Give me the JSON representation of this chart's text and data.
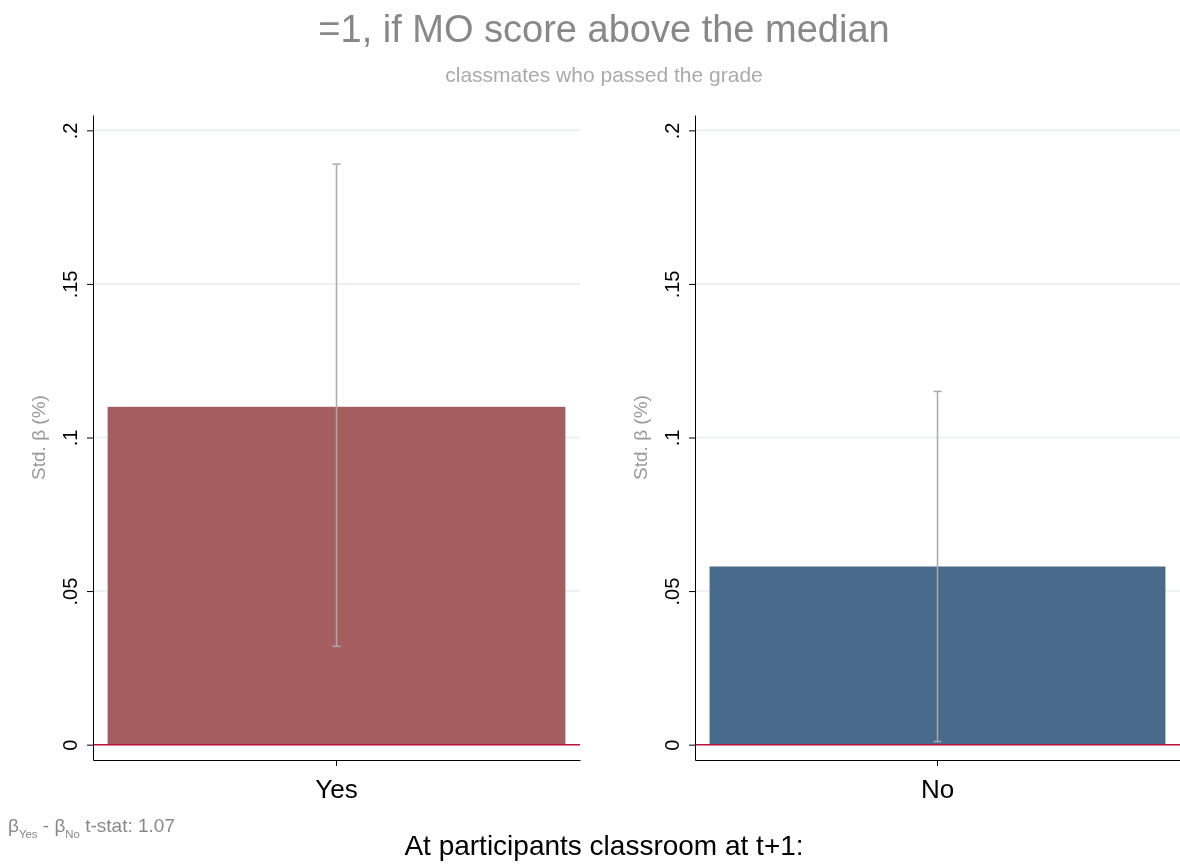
{
  "chart_data": [
    {
      "type": "other",
      "title": "=1, if MO score above the median",
      "subtitle": "classmates who passed the grade",
      "annotations": [
        "At participants classroom at t+1:",
        "β$_{Yes}$ - β$_{No}$  t-stat: 1.07"
      ]
    },
    {
      "type": "bar",
      "ylabel": "Std. β (%)",
      "categories": [
        "Yes"
      ],
      "values": [
        0.11
      ],
      "errors": [
        [
          0.032,
          0.189
        ]
      ],
      "color": "#a45e60",
      "ylim": [
        -0.005,
        0.205
      ],
      "yticks": [
        0,
        {
          "value": 0.05,
          "label": ".05"
        },
        {
          "value": 0.1,
          "label": ".1"
        },
        {
          "value": 0.15,
          "label": ".15"
        },
        {
          "value": 0.2,
          "label": ".2"
        }
      ],
      "grid": "y",
      "ref_lines": [
        {
          "axis": "y",
          "value": 0,
          "color": "#c0143c"
        }
      ]
    },
    {
      "type": "bar",
      "ylabel": "Std. β (%)",
      "categories": [
        "No"
      ],
      "values": [
        0.058
      ],
      "errors": [
        [
          0.001,
          0.115
        ]
      ],
      "color": "#486a8b",
      "ylim": [
        -0.005,
        0.205
      ],
      "yticks": [
        0,
        {
          "value": 0.05,
          "label": ".05"
        },
        {
          "value": 0.1,
          "label": ".1"
        },
        {
          "value": 0.15,
          "label": ".15"
        },
        {
          "value": 0.2,
          "label": ".2"
        }
      ],
      "grid": "y",
      "ref_lines": [
        {
          "axis": "y",
          "value": 0,
          "color": "#c0143c"
        }
      ]
    }
  ]
}
